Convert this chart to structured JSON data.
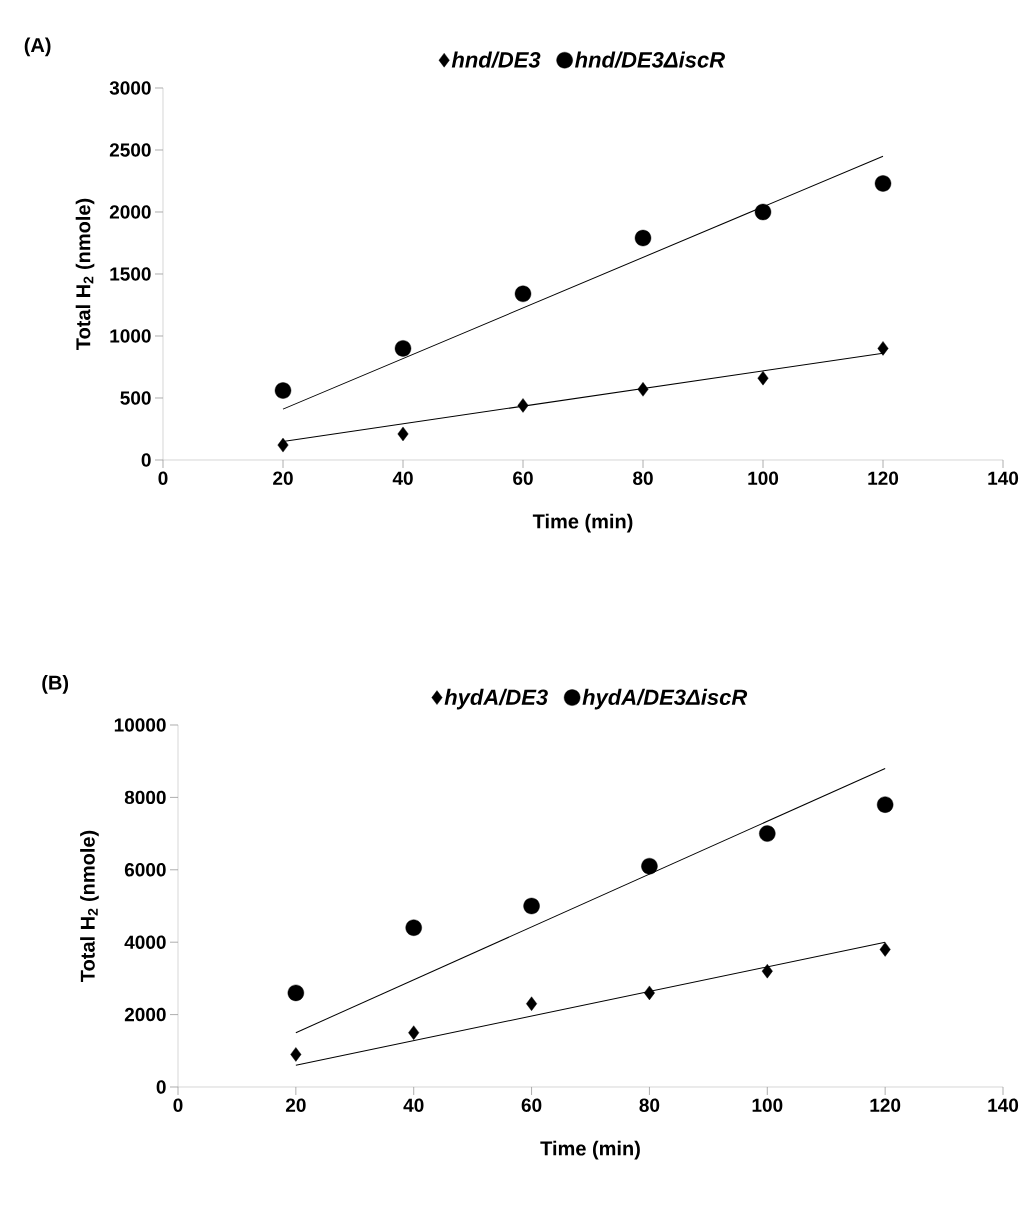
{
  "chart_data": [
    {
      "type": "scatter",
      "title": "(A)",
      "xlabel": "Time (min)",
      "ylabel": "Total H$_{2}$ (nmole)",
      "xlim": [
        0,
        140
      ],
      "xticks": [
        0,
        20,
        40,
        60,
        80,
        100,
        120,
        140
      ],
      "ylim": [
        0,
        3000
      ],
      "yticks": [
        0,
        500,
        1000,
        1500,
        2000,
        2500,
        3000
      ],
      "legend": "top",
      "grid": false,
      "series": [
        {
          "name": "hnd/DE3",
          "color": "#000000",
          "marker": "diamond",
          "x": [
            20,
            40,
            60,
            80,
            100,
            120
          ],
          "values": [
            120,
            210,
            440,
            570,
            660,
            900
          ]
        },
        {
          "name": "hnd/DE3ΔiscR",
          "color": "#000000",
          "marker": "circle",
          "x": [
            20,
            40,
            60,
            80,
            100,
            120
          ],
          "values": [
            560,
            900,
            1340,
            1790,
            2000,
            2230
          ]
        },
        {
          "type": "line",
          "color": "#000000",
          "marker": "none",
          "line_style": "solid",
          "x": [
            20,
            120
          ],
          "values": [
            150,
            860
          ]
        },
        {
          "type": "line",
          "color": "#000000",
          "marker": "none",
          "line_style": "solid",
          "x": [
            20,
            120
          ],
          "values": [
            410,
            2450
          ]
        }
      ]
    },
    {
      "type": "scatter",
      "title": "(B)",
      "xlabel": "Time (min)",
      "ylabel": "Total H$_{2}$ (nmole)",
      "xlim": [
        0,
        140
      ],
      "xticks": [
        0,
        20,
        40,
        60,
        80,
        100,
        120,
        140
      ],
      "ylim": [
        0,
        10000
      ],
      "yticks": [
        0,
        2000,
        4000,
        6000,
        8000,
        10000
      ],
      "legend": "top",
      "grid": false,
      "series": [
        {
          "name": "hydA/DE3",
          "color": "#000000",
          "marker": "diamond",
          "x": [
            20,
            40,
            60,
            80,
            100,
            120
          ],
          "values": [
            900,
            1500,
            2300,
            2600,
            3200,
            3800
          ]
        },
        {
          "name": "hydA/DE3ΔiscR",
          "color": "#000000",
          "marker": "circle",
          "x": [
            20,
            40,
            60,
            80,
            100,
            120
          ],
          "values": [
            2600,
            4400,
            5000,
            6100,
            7000,
            7800
          ]
        },
        {
          "type": "line",
          "color": "#000000",
          "marker": "none",
          "line_style": "solid",
          "x": [
            20,
            120
          ],
          "values": [
            600,
            4000
          ]
        },
        {
          "type": "line",
          "color": "#000000",
          "marker": "none",
          "line_style": "solid",
          "x": [
            20,
            120
          ],
          "values": [
            1500,
            8800
          ]
        }
      ]
    }
  ]
}
